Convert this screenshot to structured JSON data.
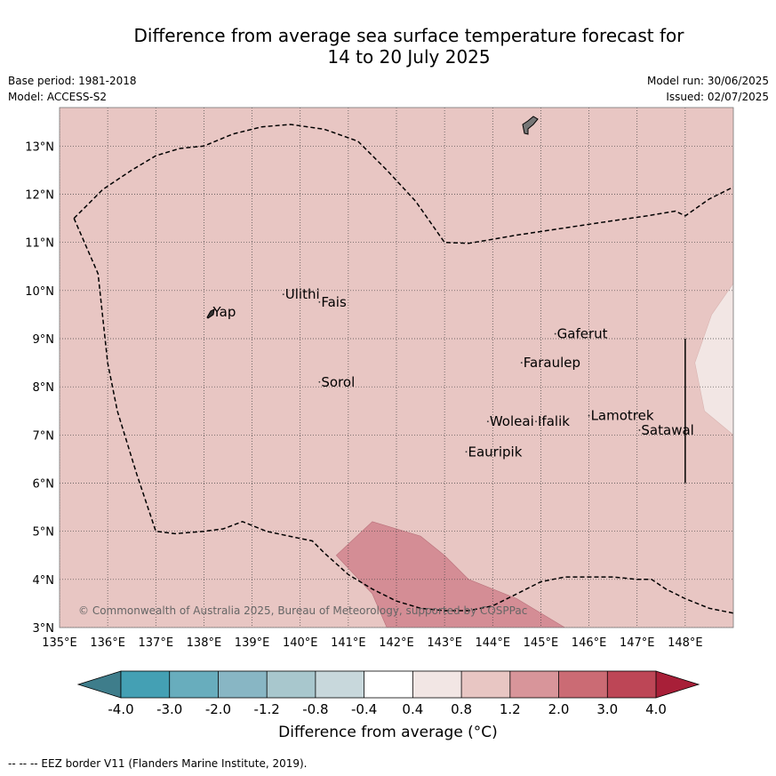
{
  "title_line1": "Difference from average sea surface temperature forecast for",
  "title_line2": "14 to 20 July 2025",
  "info_left": [
    "Base period: 1981-2018",
    "Model: ACCESS-S2"
  ],
  "info_right": [
    "Model run: 30/06/2025",
    "Issued: 02/07/2025"
  ],
  "copyright": "© Commonwealth of Australia 2025, Bureau of Meteorology, supported by COSPPac",
  "footer": "-- -- -- EEZ border V11 (Flanders Marine Institute, 2019).",
  "map": {
    "lon_range": [
      135,
      149
    ],
    "lat_range": [
      3,
      13.8
    ],
    "lon_ticks": [
      135,
      136,
      137,
      138,
      139,
      140,
      141,
      142,
      143,
      144,
      145,
      146,
      147,
      148
    ],
    "lat_ticks": [
      3,
      4,
      5,
      6,
      7,
      8,
      9,
      10,
      11,
      12,
      13
    ],
    "lon_tick_labels": [
      "135°E",
      "136°E",
      "137°E",
      "138°E",
      "139°E",
      "140°E",
      "141°E",
      "142°E",
      "143°E",
      "144°E",
      "145°E",
      "146°E",
      "147°E",
      "148°E"
    ],
    "lat_tick_labels": [
      "3°N",
      "4°N",
      "5°N",
      "6°N",
      "7°N",
      "8°N",
      "9°N",
      "10°N",
      "11°N",
      "12°N",
      "13°N"
    ],
    "grid": true,
    "background_class_color": "#e8c6c3",
    "places": [
      {
        "name": "Ulithi",
        "lon": 139.65,
        "lat": 9.92
      },
      {
        "name": "Fais",
        "lon": 140.4,
        "lat": 9.76
      },
      {
        "name": "Yap",
        "lon": 138.15,
        "lat": 9.55
      },
      {
        "name": "Gaferut",
        "lon": 145.3,
        "lat": 9.1
      },
      {
        "name": "Faraulep",
        "lon": 144.6,
        "lat": 8.5
      },
      {
        "name": "Sorol",
        "lon": 140.4,
        "lat": 8.1
      },
      {
        "name": "Lamotrek",
        "lon": 146.0,
        "lat": 7.4
      },
      {
        "name": "Woleai",
        "lon": 143.9,
        "lat": 7.28
      },
      {
        "name": "Ifalik",
        "lon": 144.9,
        "lat": 7.28
      },
      {
        "name": "Satawal",
        "lon": 147.05,
        "lat": 7.1
      },
      {
        "name": "Eauripik",
        "lon": 143.45,
        "lat": 6.65
      }
    ],
    "eez_north": [
      [
        135.3,
        11.5
      ],
      [
        135.5,
        11.7
      ],
      [
        135.9,
        12.1
      ],
      [
        136.5,
        12.5
      ],
      [
        137.0,
        12.8
      ],
      [
        137.5,
        12.95
      ],
      [
        138.0,
        13.0
      ],
      [
        138.6,
        13.25
      ],
      [
        139.2,
        13.4
      ],
      [
        139.8,
        13.45
      ],
      [
        140.5,
        13.35
      ],
      [
        141.2,
        13.1
      ],
      [
        141.8,
        12.5
      ],
      [
        142.4,
        11.85
      ],
      [
        143.0,
        11.0
      ],
      [
        143.5,
        10.98
      ],
      [
        144.5,
        11.15
      ],
      [
        145.5,
        11.3
      ],
      [
        146.5,
        11.45
      ],
      [
        147.2,
        11.55
      ],
      [
        147.8,
        11.65
      ],
      [
        148.0,
        11.55
      ],
      [
        148.5,
        11.9
      ],
      [
        149.0,
        12.15
      ]
    ],
    "eez_west": [
      [
        135.3,
        11.5
      ],
      [
        135.8,
        10.35
      ],
      [
        136.0,
        8.5
      ],
      [
        136.2,
        7.5
      ],
      [
        136.6,
        6.2
      ],
      [
        137.0,
        5.0
      ],
      [
        137.4,
        4.95
      ],
      [
        138.0,
        5.0
      ],
      [
        138.4,
        5.05
      ],
      [
        138.8,
        5.2
      ],
      [
        139.3,
        5.0
      ],
      [
        140.0,
        4.85
      ],
      [
        140.25,
        4.8
      ],
      [
        140.5,
        4.55
      ],
      [
        141.0,
        4.1
      ],
      [
        141.5,
        3.8
      ],
      [
        142.0,
        3.55
      ],
      [
        142.5,
        3.4
      ],
      [
        143.0,
        3.35
      ],
      [
        143.5,
        3.35
      ],
      [
        144.0,
        3.45
      ],
      [
        144.5,
        3.7
      ],
      [
        145.0,
        3.95
      ],
      [
        145.5,
        4.05
      ],
      [
        146.0,
        4.05
      ],
      [
        146.5,
        4.05
      ],
      [
        147.0,
        4.0
      ],
      [
        147.3,
        4.0
      ],
      [
        147.6,
        3.8
      ],
      [
        148.0,
        3.6
      ],
      [
        148.5,
        3.4
      ],
      [
        149.0,
        3.3
      ]
    ],
    "warm_patch": [
      [
        140.75,
        4.5
      ],
      [
        141.5,
        5.2
      ],
      [
        142.5,
        4.9
      ],
      [
        143.0,
        4.5
      ],
      [
        143.5,
        4.0
      ],
      [
        144.5,
        3.6
      ],
      [
        145.5,
        3.0
      ],
      [
        141.8,
        3.0
      ],
      [
        141.5,
        3.7
      ]
    ],
    "cool_patch": [
      [
        149.0,
        10.15
      ],
      [
        148.55,
        9.5
      ],
      [
        148.2,
        8.5
      ],
      [
        148.4,
        7.5
      ],
      [
        149.0,
        7.0
      ]
    ],
    "vertical_line": {
      "lon": 148.0,
      "lat_start": 9.0,
      "lat_end": 6.0
    }
  },
  "colorbar": {
    "label": "Difference from average (°C)",
    "tick_labels": [
      "-4.0",
      "-3.0",
      "-2.0",
      "-1.2",
      "-0.8",
      "-0.4",
      "0.4",
      "0.8",
      "1.2",
      "2.0",
      "3.0",
      "4.0"
    ],
    "colors": [
      "#44a0b4",
      "#68adbd",
      "#88b6c4",
      "#a8c7cd",
      "#c8d8dc",
      "#ffffff",
      "#f2e6e4",
      "#e8c6c3",
      "#d8959a",
      "#cb6b74",
      "#bd4656"
    ],
    "under_color": "#3e7d8b",
    "over_color": "#a81f38"
  },
  "colors": {
    "eez": "#000000",
    "grid": "#444444",
    "warm_patch": "#d48d95",
    "cool_patch": "#f2e6e4",
    "land": "#777777"
  }
}
